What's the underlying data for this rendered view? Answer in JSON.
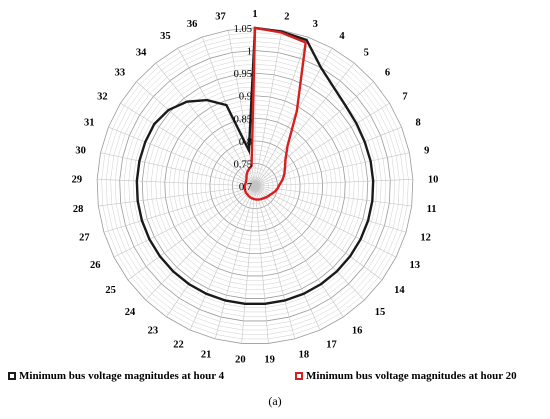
{
  "chart_data": {
    "type": "radar",
    "categories": [
      "1",
      "2",
      "3",
      "4",
      "5",
      "6",
      "7",
      "8",
      "9",
      "10",
      "11",
      "12",
      "13",
      "14",
      "15",
      "16",
      "17",
      "18",
      "19",
      "20",
      "21",
      "22",
      "23",
      "24",
      "25",
      "26",
      "27",
      "28",
      "29",
      "30",
      "31",
      "32",
      "33",
      "34",
      "35",
      "36",
      "37"
    ],
    "r_ticks": [
      "0.7",
      "0.75",
      "0.8",
      "0.85",
      "0.9",
      "0.95",
      "1",
      "1.05"
    ],
    "rlim": [
      0.7,
      1.05
    ],
    "grid": true,
    "legend_position": "bottom",
    "series": [
      {
        "name": "Minimum bus voltage magnitudes at hour 4",
        "color": "#1a1a1a",
        "values": [
          1.05,
          1.047,
          1.043,
          1.0,
          0.979,
          0.968,
          0.964,
          0.962,
          0.962,
          0.962,
          0.962,
          0.962,
          0.962,
          0.962,
          0.962,
          0.962,
          0.962,
          0.962,
          0.962,
          0.962,
          0.962,
          0.962,
          0.962,
          0.962,
          0.962,
          0.962,
          0.962,
          0.962,
          0.962,
          0.962,
          0.962,
          0.962,
          0.955,
          0.94,
          0.918,
          0.89,
          0.78
        ]
      },
      {
        "name": "Minimum bus voltage magnitudes at hour 20",
        "color": "#d62020",
        "values": [
          1.05,
          1.045,
          1.037,
          0.89,
          0.815,
          0.79,
          0.778,
          0.77,
          0.762,
          0.754,
          0.75,
          0.745,
          0.74,
          0.737,
          0.735,
          0.733,
          0.732,
          0.731,
          0.73,
          0.729,
          0.728,
          0.727,
          0.726,
          0.725,
          0.725,
          0.724,
          0.724,
          0.723,
          0.723,
          0.722,
          0.722,
          0.723,
          0.725,
          0.73,
          0.735,
          0.74,
          0.745
        ]
      }
    ]
  },
  "caption": "(a)"
}
